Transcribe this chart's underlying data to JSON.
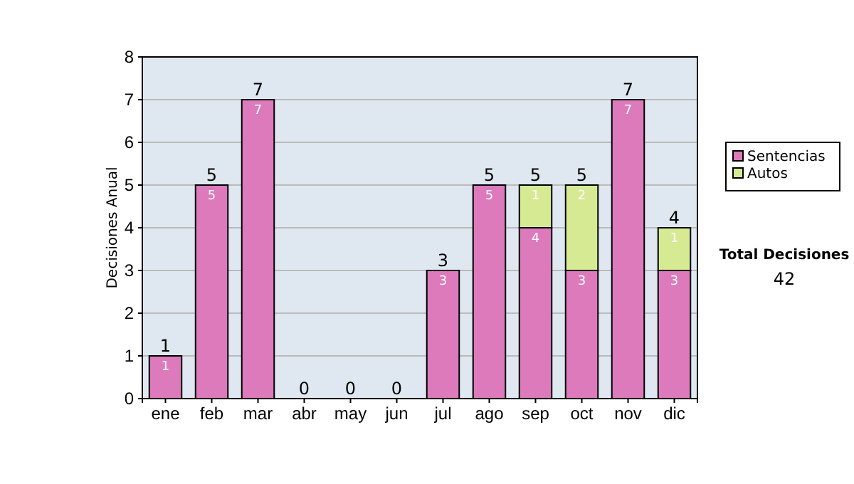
{
  "chart_data": {
    "type": "bar",
    "stacked": true,
    "ylabel": "Decisiones Anual",
    "categories": [
      "ene",
      "feb",
      "mar",
      "abr",
      "may",
      "jun",
      "jul",
      "ago",
      "sep",
      "oct",
      "nov",
      "dic"
    ],
    "series": [
      {
        "name": "Sentencias",
        "color": "#dc7abc",
        "values": [
          1,
          5,
          7,
          0,
          0,
          0,
          3,
          5,
          4,
          3,
          7,
          3
        ],
        "value_labels": [
          "1",
          "5",
          "7",
          null,
          null,
          null,
          "3",
          "5",
          "4",
          "3",
          "7",
          "3"
        ]
      },
      {
        "name": "Autos",
        "color": "#d6ea94",
        "values": [
          null,
          null,
          null,
          null,
          null,
          null,
          null,
          null,
          1,
          2,
          null,
          1
        ],
        "value_labels": [
          null,
          null,
          null,
          null,
          null,
          null,
          null,
          null,
          "1",
          "2",
          null,
          "1"
        ]
      }
    ],
    "totals": [
      "1",
      "5",
      "7",
      "0",
      "0",
      "0",
      "3",
      "5",
      "5",
      "5",
      "7",
      "4"
    ],
    "ylim": [
      0,
      8
    ],
    "yticks": [
      0,
      1,
      2,
      3,
      4,
      5,
      6,
      7,
      8
    ],
    "grid": "y",
    "legend": "right",
    "annotations": [
      "Total Decisiones",
      "42"
    ]
  }
}
